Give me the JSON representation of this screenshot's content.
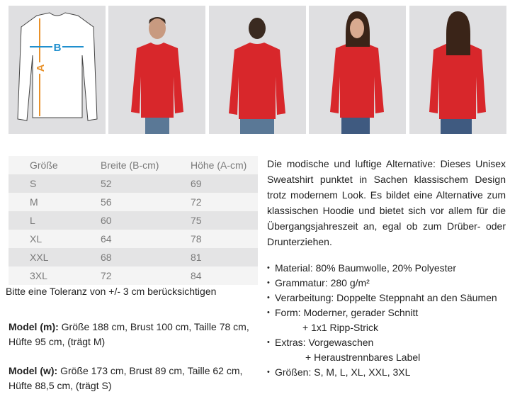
{
  "images": [
    {
      "name": "size-diagram",
      "labels": {
        "width": "B",
        "height": "A"
      },
      "colors": {
        "width": "#1f8fce",
        "height": "#e8912a"
      }
    },
    {
      "name": "male-model-front"
    },
    {
      "name": "male-model-back"
    },
    {
      "name": "female-model-front"
    },
    {
      "name": "female-model-back"
    }
  ],
  "garment_color": "#d8272b",
  "size_table": {
    "headers": [
      "Größe",
      "Breite (B-cm)",
      "Höhe (A-cm)"
    ],
    "rows": [
      [
        "S",
        "52",
        "69"
      ],
      [
        "M",
        "56",
        "72"
      ],
      [
        "L",
        "60",
        "75"
      ],
      [
        "XL",
        "64",
        "78"
      ],
      [
        "XXL",
        "68",
        "81"
      ],
      [
        "3XL",
        "72",
        "84"
      ]
    ]
  },
  "tolerance": "Bitte eine Toleranz von +/- 3 cm berücksichtigen",
  "model_m": {
    "label": "Model (m):",
    "text": " Größe 188 cm, Brust 100 cm, Taille 78 cm, Hüfte 95 cm, (trägt M)"
  },
  "model_w": {
    "label": "Model (w):",
    "text": " Größe 173 cm, Brust 89 cm, Taille 62 cm, Hüfte 88,5 cm, (trägt S)"
  },
  "description": "Die modische und luftige Alternative: Dieses Unisex Sweatshirt punktet in Sachen klassischem Design trotz modernem Look. Es bildet eine Alternative zum klassischen Hoodie und bietet sich vor allem für die Übergangsjahreszeit an, egal ob zum Drüber- oder Drunterziehen.",
  "features": [
    "Material: 80% Baumwolle, 20% Polyester",
    "Grammatur: 280 g/m²",
    "Verarbeitung: Doppelte Steppnaht an den Säumen",
    "Form: Moderner, gerader Schnitt",
    "+ 1x1 Ripp-Strick",
    "Extras: Vorgewaschen",
    "+ Heraustrennbares Label",
    "Größen:  S, M, L, XL, XXL, 3XL"
  ]
}
